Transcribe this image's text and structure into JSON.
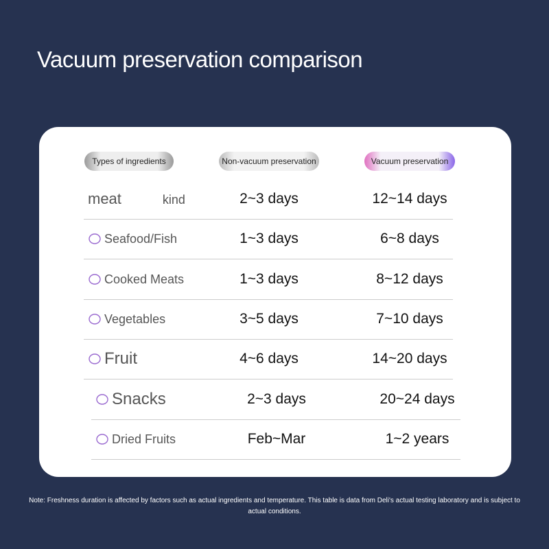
{
  "title": "Vacuum preservation comparison",
  "table": {
    "headers": [
      "Types of ingredients",
      "Non-vacuum preservation",
      "Vacuum preservation"
    ],
    "rows": [
      {
        "ingredient": [
          "meat",
          "kind"
        ],
        "non_vacuum": "2~3 days",
        "vacuum": "12~14 days"
      },
      {
        "ingredient": [
          "Seafood/Fish"
        ],
        "non_vacuum": "1~3 days",
        "vacuum": "6~8 days"
      },
      {
        "ingredient": [
          "Cooked Meats"
        ],
        "non_vacuum": "1~3 days",
        "vacuum": "8~12 days"
      },
      {
        "ingredient": [
          "Vegetables"
        ],
        "non_vacuum": "3~5 days",
        "vacuum": "7~10 days"
      },
      {
        "ingredient": [
          "Fruit"
        ],
        "non_vacuum": "4~6 days",
        "vacuum": "14~20 days"
      },
      {
        "ingredient": [
          "Snacks"
        ],
        "non_vacuum": "2~3 days",
        "vacuum": "20~24 days"
      },
      {
        "ingredient": [
          "Dried Fruits"
        ],
        "non_vacuum": "Feb~Mar",
        "vacuum": "1~2 years"
      }
    ]
  },
  "note": "Note: Freshness duration is affected by factors such as actual ingredients and temperature. This table is data from Deli's actual testing laboratory and is subject to actual conditions."
}
